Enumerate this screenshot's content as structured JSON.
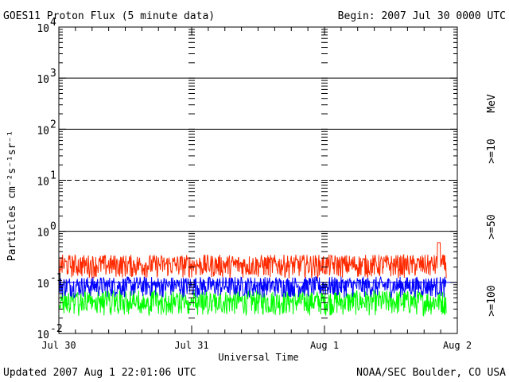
{
  "header": {
    "title": "GOES11 Proton Flux (5 minute data)",
    "begin": "Begin: 2007 Jul 30 0000 UTC"
  },
  "footer": {
    "updated": "Updated 2007 Aug  1 22:01:06 UTC",
    "credit": "NOAA/SEC Boulder, CO USA"
  },
  "chart_data": {
    "type": "line",
    "title": "GOES11 Proton Flux (5 minute data)",
    "xlabel": "Universal Time",
    "ylabel": "Particles cm⁻²s⁻¹sr⁻¹",
    "y_scale": "log",
    "ylim": [
      0.01,
      10000
    ],
    "y_ticks": [
      {
        "value": 0.01,
        "base": "10",
        "exp": "-2"
      },
      {
        "value": 0.1,
        "base": "10",
        "exp": "-1"
      },
      {
        "value": 1,
        "base": "10",
        "exp": "0"
      },
      {
        "value": 10,
        "base": "10",
        "exp": "1"
      },
      {
        "value": 100,
        "base": "10",
        "exp": "2"
      },
      {
        "value": 1000,
        "base": "10",
        "exp": "3"
      },
      {
        "value": 10000,
        "base": "10",
        "exp": "4"
      }
    ],
    "x_ticks": [
      "Jul 30",
      "Jul 31",
      "Aug 1",
      "Aug 2"
    ],
    "xlim": [
      "2007-07-30 00:00",
      "2007-08-02 00:00"
    ],
    "data_end": "2007-08-01 22:00",
    "threshold_lines": [
      {
        "value": 1,
        "style": "solid"
      },
      {
        "value": 10,
        "style": "dashed"
      },
      {
        "value": 100,
        "style": "solid"
      },
      {
        "value": 1000,
        "style": "solid"
      },
      {
        "value": 0.1,
        "style": "solid",
        "color": "#0000ff"
      }
    ],
    "unit_label": "MeV",
    "series": [
      {
        "name": ">=10",
        "color": "#ff2a00",
        "typical_range": [
          0.12,
          0.35
        ],
        "peak": 0.6
      },
      {
        "name": ">=50",
        "color": "#0000ff",
        "typical_range": [
          0.05,
          0.13
        ]
      },
      {
        "name": ">=100",
        "color": "#00ff00",
        "typical_range": [
          0.022,
          0.07
        ]
      }
    ]
  }
}
